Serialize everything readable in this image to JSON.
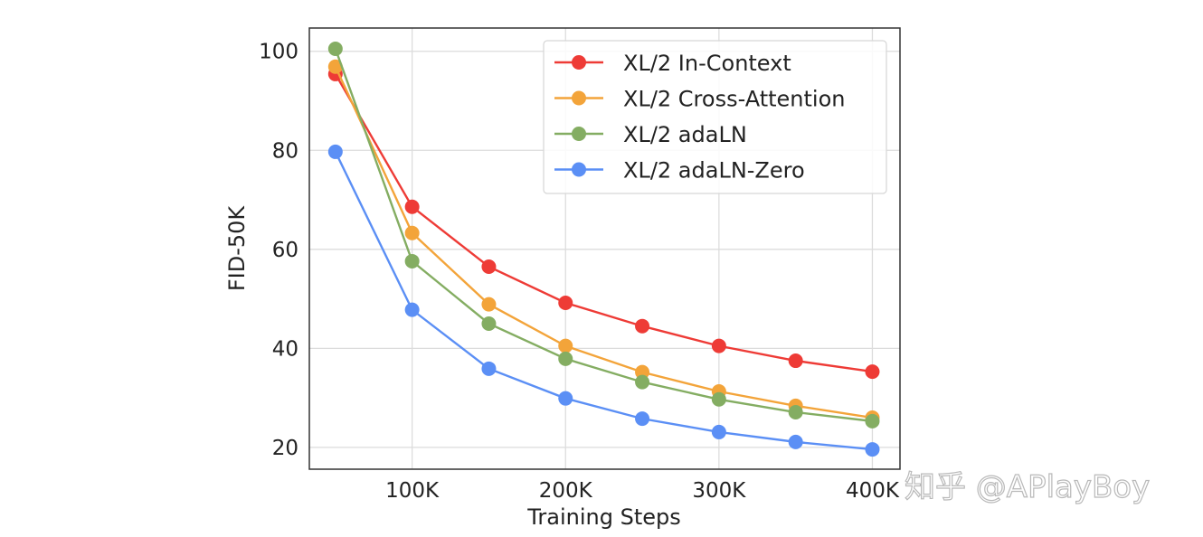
{
  "chart_data": {
    "type": "line",
    "title": "",
    "xlabel": "Training Steps",
    "ylabel": "FID-50K",
    "x": [
      50,
      100,
      150,
      200,
      250,
      300,
      350,
      400
    ],
    "x_unit": "K",
    "xticks": [
      100,
      200,
      300,
      400
    ],
    "xtick_labels": [
      "100K",
      "200K",
      "300K",
      "400K"
    ],
    "yticks": [
      20,
      40,
      60,
      80,
      100
    ],
    "ytick_labels": [
      "20",
      "40",
      "60",
      "80",
      "100"
    ],
    "xlim": [
      33,
      418
    ],
    "ylim": [
      15.6,
      104.7
    ],
    "grid": true,
    "legend": "top-right",
    "series": [
      {
        "name": "XL/2 In-Context",
        "color": "#ee3b36",
        "values": [
          95.4,
          68.6,
          56.5,
          49.2,
          44.5,
          40.5,
          37.5,
          35.3
        ]
      },
      {
        "name": "XL/2 Cross-Attention",
        "color": "#f3a43a",
        "values": [
          96.9,
          63.3,
          48.9,
          40.5,
          35.2,
          31.3,
          28.4,
          26.0
        ]
      },
      {
        "name": "XL/2 adaLN",
        "color": "#84ad62",
        "values": [
          100.5,
          57.6,
          45.0,
          37.9,
          33.2,
          29.7,
          27.1,
          25.3
        ]
      },
      {
        "name": "XL/2 adaLN-Zero",
        "color": "#5b8ff5",
        "values": [
          79.7,
          47.8,
          35.9,
          29.9,
          25.8,
          23.1,
          21.1,
          19.6
        ]
      }
    ]
  },
  "watermark": "知乎 @APlayBoy"
}
